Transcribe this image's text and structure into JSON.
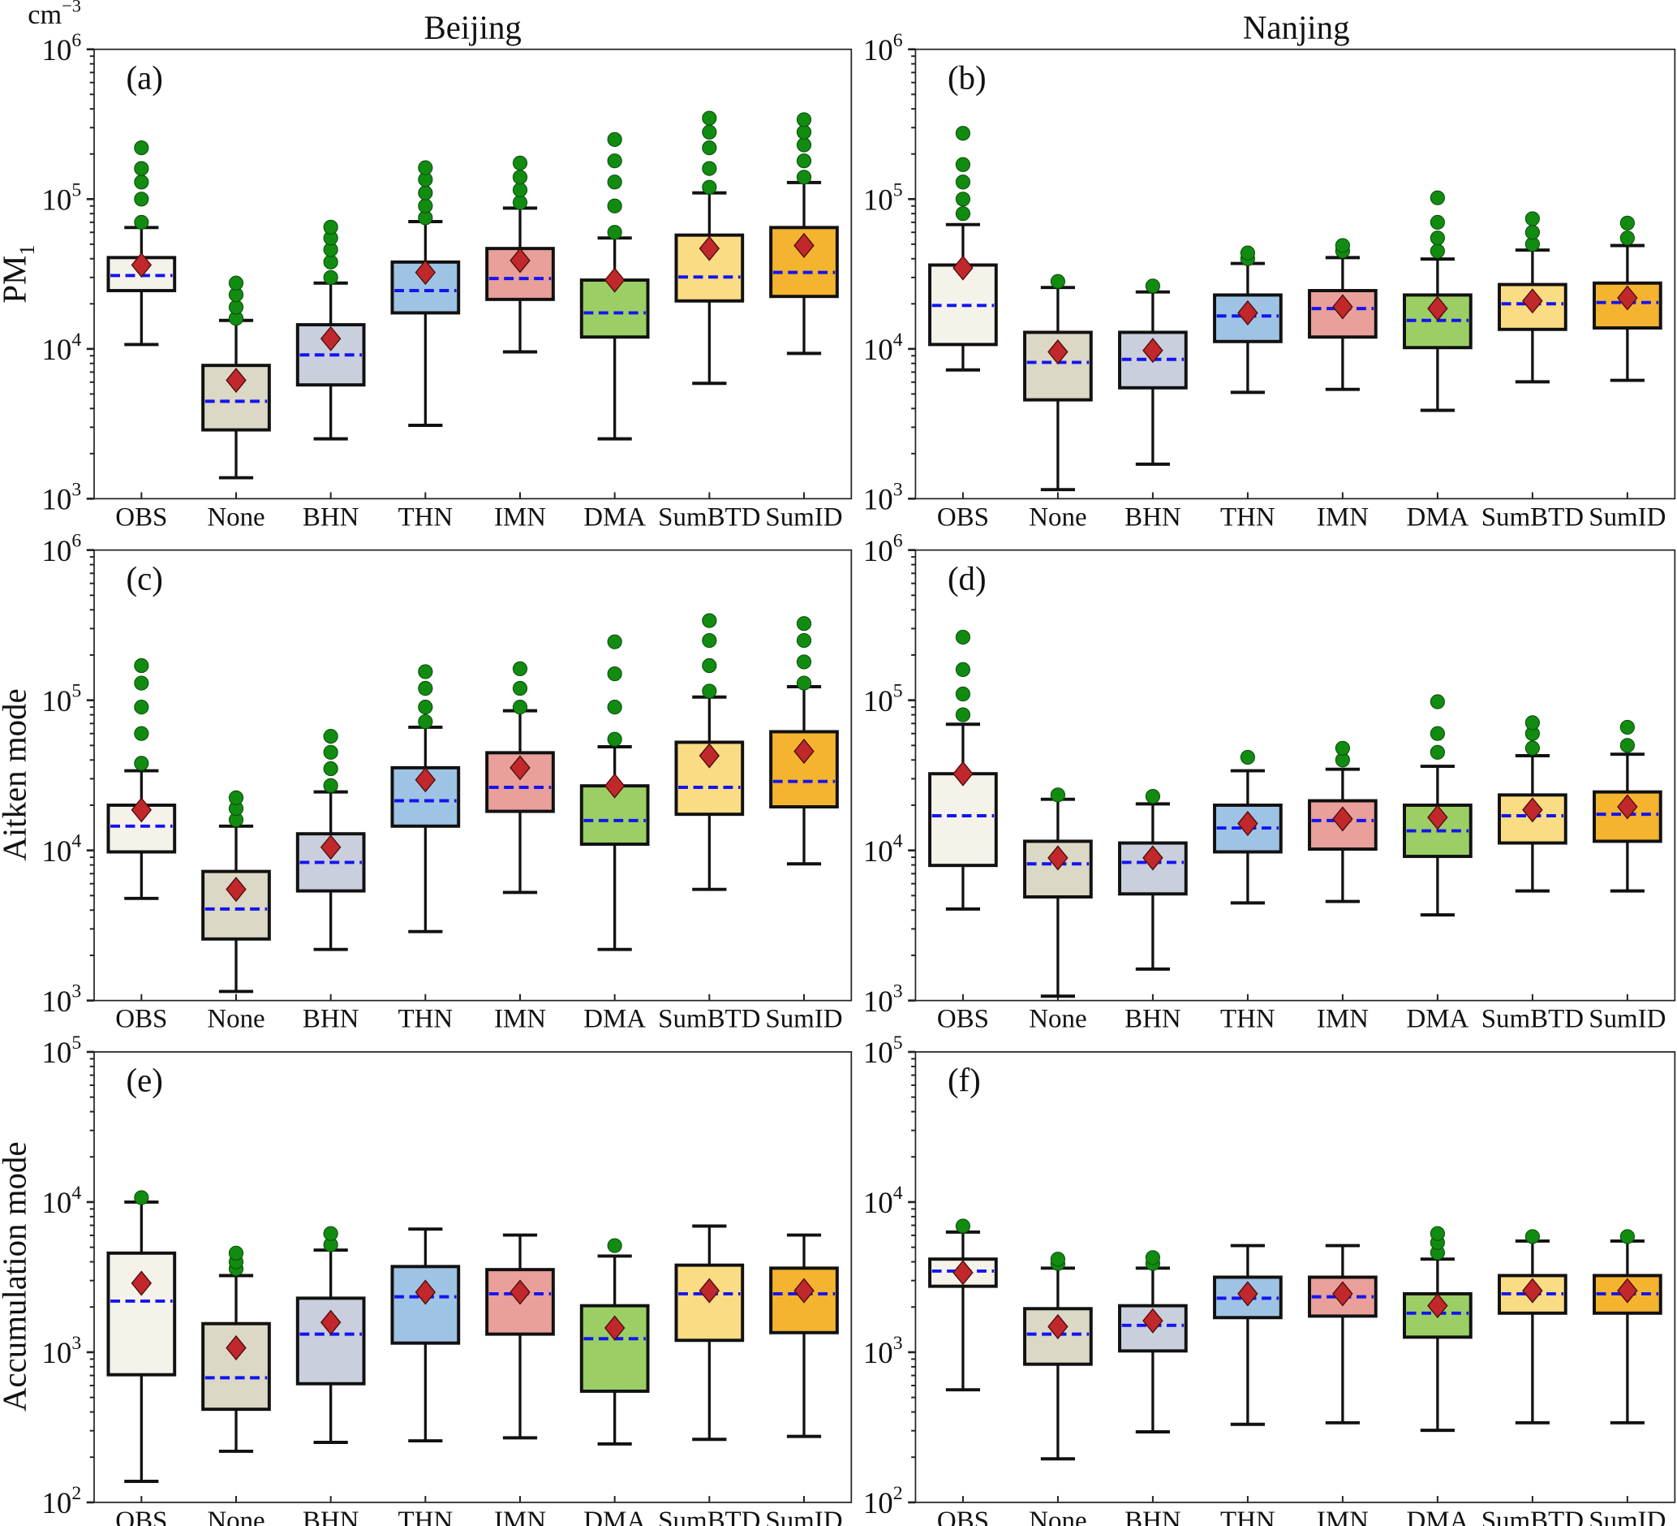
{
  "figure": {
    "unit_label": "cm",
    "unit_exponent": "−3",
    "column_titles": [
      "Beijing",
      "Nanjing"
    ],
    "row_labels": [
      {
        "main": "PM",
        "sub": "1"
      },
      {
        "main": "Aitken mode",
        "sub": ""
      },
      {
        "main": "Accumulation mode",
        "sub": ""
      }
    ]
  },
  "colors": {
    "box_fills": [
      "#f5f2ea",
      "#dcd8c6",
      "#c9cfdc",
      "#9fc3e4",
      "#e9a09a",
      "#9bcf65",
      "#f9dc84",
      "#f4b42f"
    ],
    "outlier": "#118c11",
    "mean_marker": "#c0282b",
    "median_line": "#1414f0"
  },
  "chart_data": [
    {
      "type": "box",
      "panel_label": "(a)",
      "column": "Beijing",
      "row": "PM1",
      "yscale": "log",
      "ylim": [
        1000,
        1000000
      ],
      "ytick_exponents": [
        3,
        4,
        5,
        6
      ],
      "categories": [
        "OBS",
        "None",
        "BHN",
        "THN",
        "IMN",
        "DMA",
        "SumBTD",
        "SumID"
      ],
      "boxes": [
        {
          "whisker_low": 10700,
          "q1": 24500,
          "median": 30900,
          "q3": 40700,
          "whisker_high": 64600,
          "mean": 36300,
          "outliers": [
            70000,
            100000,
            130000,
            160000,
            220000
          ]
        },
        {
          "whisker_low": 1380,
          "q1": 2880,
          "median": 4470,
          "q3": 7760,
          "whisker_high": 15500,
          "mean": 6170,
          "outliers": [
            16000,
            19000,
            23000,
            27500
          ]
        },
        {
          "whisker_low": 2510,
          "q1": 5750,
          "median": 9120,
          "q3": 14500,
          "whisker_high": 27500,
          "mean": 11700,
          "outliers": [
            30000,
            38000,
            46000,
            55000,
            65000
          ]
        },
        {
          "whisker_low": 3090,
          "q1": 17400,
          "median": 24500,
          "q3": 38000,
          "whisker_high": 70800,
          "mean": 32400,
          "outliers": [
            75000,
            90000,
            110000,
            135000,
            162000
          ]
        },
        {
          "whisker_low": 9550,
          "q1": 21400,
          "median": 29500,
          "q3": 46800,
          "whisker_high": 87100,
          "mean": 38900,
          "outliers": [
            95000,
            115000,
            140000,
            174000
          ]
        },
        {
          "whisker_low": 2510,
          "q1": 12000,
          "median": 17400,
          "q3": 28800,
          "whisker_high": 55000,
          "mean": 28800,
          "outliers": [
            60000,
            90000,
            130000,
            180000,
            250000
          ]
        },
        {
          "whisker_low": 5890,
          "q1": 20900,
          "median": 30200,
          "q3": 57500,
          "whisker_high": 110000,
          "mean": 46800,
          "outliers": [
            120000,
            160000,
            220000,
            280000,
            347000
          ]
        },
        {
          "whisker_low": 9330,
          "q1": 22400,
          "median": 32400,
          "q3": 64600,
          "whisker_high": 129000,
          "mean": 49000,
          "outliers": [
            140000,
            180000,
            230000,
            280000,
            339000
          ]
        }
      ]
    },
    {
      "type": "box",
      "panel_label": "(b)",
      "column": "Nanjing",
      "row": "PM1",
      "yscale": "log",
      "ylim": [
        1000,
        1000000
      ],
      "ytick_exponents": [
        3,
        4,
        5,
        6
      ],
      "categories": [
        "OBS",
        "None",
        "BHN",
        "THN",
        "IMN",
        "DMA",
        "SumBTD",
        "SumID"
      ],
      "boxes": [
        {
          "whisker_low": 7240,
          "q1": 10700,
          "median": 19500,
          "q3": 36300,
          "whisker_high": 67600,
          "mean": 34700,
          "outliers": [
            80000,
            100000,
            130000,
            170000,
            275000
          ]
        },
        {
          "whisker_low": 1150,
          "q1": 4570,
          "median": 8130,
          "q3": 12900,
          "whisker_high": 25700,
          "mean": 9550,
          "outliers": [
            28200
          ]
        },
        {
          "whisker_low": 1700,
          "q1": 5500,
          "median": 8510,
          "q3": 12900,
          "whisker_high": 24000,
          "mean": 9770,
          "outliers": [
            26300
          ]
        },
        {
          "whisker_low": 5130,
          "q1": 11200,
          "median": 16600,
          "q3": 22900,
          "whisker_high": 37200,
          "mean": 17400,
          "outliers": [
            40000,
            43700
          ]
        },
        {
          "whisker_low": 5370,
          "q1": 12000,
          "median": 18600,
          "q3": 24500,
          "whisker_high": 40700,
          "mean": 19100,
          "outliers": [
            45000,
            49000
          ]
        },
        {
          "whisker_low": 3890,
          "q1": 10200,
          "median": 15500,
          "q3": 22900,
          "whisker_high": 39800,
          "mean": 18600,
          "outliers": [
            45000,
            55000,
            70000,
            102000
          ]
        },
        {
          "whisker_low": 6030,
          "q1": 13500,
          "median": 20000,
          "q3": 26900,
          "whisker_high": 45700,
          "mean": 20900,
          "outliers": [
            50000,
            60000,
            74000
          ]
        },
        {
          "whisker_low": 6170,
          "q1": 13800,
          "median": 20400,
          "q3": 27500,
          "whisker_high": 49000,
          "mean": 21900,
          "outliers": [
            55000,
            69200
          ]
        }
      ]
    },
    {
      "type": "box",
      "panel_label": "(c)",
      "column": "Beijing",
      "row": "Aitken mode",
      "yscale": "log",
      "ylim": [
        1000,
        1000000
      ],
      "ytick_exponents": [
        3,
        4,
        5,
        6
      ],
      "categories": [
        "OBS",
        "None",
        "BHN",
        "THN",
        "IMN",
        "DMA",
        "SumBTD",
        "SumID"
      ],
      "boxes": [
        {
          "whisker_low": 4790,
          "q1": 9770,
          "median": 14500,
          "q3": 20000,
          "whisker_high": 33900,
          "mean": 18600,
          "outliers": [
            38000,
            60000,
            90000,
            130000,
            170000
          ]
        },
        {
          "whisker_low": 1150,
          "q1": 2570,
          "median": 4070,
          "q3": 7240,
          "whisker_high": 14500,
          "mean": 5500,
          "outliers": [
            16000,
            19000,
            22400
          ]
        },
        {
          "whisker_low": 2190,
          "q1": 5370,
          "median": 8320,
          "q3": 12900,
          "whisker_high": 24500,
          "mean": 10500,
          "outliers": [
            27000,
            35000,
            45000,
            57500
          ]
        },
        {
          "whisker_low": 2880,
          "q1": 14500,
          "median": 21400,
          "q3": 35500,
          "whisker_high": 66100,
          "mean": 29500,
          "outliers": [
            72000,
            90000,
            120000,
            155000
          ]
        },
        {
          "whisker_low": 5250,
          "q1": 18200,
          "median": 26300,
          "q3": 44700,
          "whisker_high": 85100,
          "mean": 35500,
          "outliers": [
            90000,
            120000,
            162000
          ]
        },
        {
          "whisker_low": 2190,
          "q1": 11000,
          "median": 15800,
          "q3": 26900,
          "whisker_high": 49000,
          "mean": 26900,
          "outliers": [
            55000,
            90000,
            150000,
            245000
          ]
        },
        {
          "whisker_low": 5500,
          "q1": 17400,
          "median": 26300,
          "q3": 52500,
          "whisker_high": 105000,
          "mean": 42700,
          "outliers": [
            115000,
            170000,
            250000,
            339000
          ]
        },
        {
          "whisker_low": 8130,
          "q1": 19500,
          "median": 28800,
          "q3": 61700,
          "whisker_high": 123000,
          "mean": 45700,
          "outliers": [
            130000,
            180000,
            250000,
            324000
          ]
        }
      ]
    },
    {
      "type": "box",
      "panel_label": "(d)",
      "column": "Nanjing",
      "row": "Aitken mode",
      "yscale": "log",
      "ylim": [
        1000,
        1000000
      ],
      "ytick_exponents": [
        3,
        4,
        5,
        6
      ],
      "categories": [
        "OBS",
        "None",
        "BHN",
        "THN",
        "IMN",
        "DMA",
        "SumBTD",
        "SumID"
      ],
      "boxes": [
        {
          "whisker_low": 4070,
          "q1": 7940,
          "median": 17000,
          "q3": 32400,
          "whisker_high": 69200,
          "mean": 32400,
          "outliers": [
            80000,
            110000,
            160000,
            263000
          ]
        },
        {
          "whisker_low": 1070,
          "q1": 4900,
          "median": 8130,
          "q3": 11500,
          "whisker_high": 21900,
          "mean": 8910,
          "outliers": [
            23400
          ]
        },
        {
          "whisker_low": 1620,
          "q1": 5130,
          "median": 8320,
          "q3": 11200,
          "whisker_high": 20400,
          "mean": 8910,
          "outliers": [
            22900
          ]
        },
        {
          "whisker_low": 4470,
          "q1": 9770,
          "median": 14100,
          "q3": 20000,
          "whisker_high": 33900,
          "mean": 15100,
          "outliers": [
            41700
          ]
        },
        {
          "whisker_low": 4570,
          "q1": 10200,
          "median": 15800,
          "q3": 21400,
          "whisker_high": 34700,
          "mean": 16200,
          "outliers": [
            40000,
            47900
          ]
        },
        {
          "whisker_low": 3720,
          "q1": 9120,
          "median": 13500,
          "q3": 20000,
          "whisker_high": 36300,
          "mean": 16600,
          "outliers": [
            45000,
            60000,
            97700
          ]
        },
        {
          "whisker_low": 5370,
          "q1": 11200,
          "median": 17000,
          "q3": 23400,
          "whisker_high": 42700,
          "mean": 18600,
          "outliers": [
            48000,
            60000,
            70800
          ]
        },
        {
          "whisker_low": 5370,
          "q1": 11500,
          "median": 17400,
          "q3": 24500,
          "whisker_high": 43700,
          "mean": 19500,
          "outliers": [
            50000,
            66100
          ]
        }
      ]
    },
    {
      "type": "box",
      "panel_label": "(e)",
      "column": "Beijing",
      "row": "Accumulation mode",
      "yscale": "log",
      "ylim": [
        100,
        100000
      ],
      "ytick_exponents": [
        2,
        3,
        4,
        5
      ],
      "categories": [
        "OBS",
        "None",
        "BHN",
        "THN",
        "IMN",
        "DMA",
        "SumBTD",
        "SumID"
      ],
      "boxes": [
        {
          "whisker_low": 138,
          "q1": 708,
          "median": 2190,
          "q3": 4570,
          "whisker_high": 10000,
          "mean": 2880,
          "outliers": [
            10700
          ]
        },
        {
          "whisker_low": 219,
          "q1": 417,
          "median": 676,
          "q3": 1550,
          "whisker_high": 3240,
          "mean": 1070,
          "outliers": [
            3600,
            4000,
            4570
          ]
        },
        {
          "whisker_low": 251,
          "q1": 617,
          "median": 1320,
          "q3": 2290,
          "whisker_high": 4790,
          "mean": 1580,
          "outliers": [
            5200,
            6170
          ]
        },
        {
          "whisker_low": 257,
          "q1": 1150,
          "median": 2340,
          "q3": 3720,
          "whisker_high": 6610,
          "mean": 2510,
          "outliers": []
        },
        {
          "whisker_low": 269,
          "q1": 1320,
          "median": 2450,
          "q3": 3550,
          "whisker_high": 6030,
          "mean": 2510,
          "outliers": []
        },
        {
          "whisker_low": 245,
          "q1": 550,
          "median": 1230,
          "q3": 2040,
          "whisker_high": 4370,
          "mean": 1450,
          "outliers": [
            5130
          ]
        },
        {
          "whisker_low": 263,
          "q1": 1200,
          "median": 2450,
          "q3": 3800,
          "whisker_high": 6920,
          "mean": 2570,
          "outliers": []
        },
        {
          "whisker_low": 275,
          "q1": 1350,
          "median": 2450,
          "q3": 3630,
          "whisker_high": 6030,
          "mean": 2570,
          "outliers": []
        }
      ]
    },
    {
      "type": "box",
      "panel_label": "(f)",
      "column": "Nanjing",
      "row": "Accumulation mode",
      "yscale": "log",
      "ylim": [
        100,
        100000
      ],
      "ytick_exponents": [
        2,
        3,
        4,
        5
      ],
      "categories": [
        "OBS",
        "None",
        "BHN",
        "THN",
        "IMN",
        "DMA",
        "SumBTD",
        "SumID"
      ],
      "boxes": [
        {
          "whisker_low": 562,
          "q1": 2750,
          "median": 3470,
          "q3": 4170,
          "whisker_high": 6310,
          "mean": 3390,
          "outliers": [
            6920
          ]
        },
        {
          "whisker_low": 195,
          "q1": 832,
          "median": 1320,
          "q3": 1950,
          "whisker_high": 3630,
          "mean": 1480,
          "outliers": [
            3900,
            4170
          ]
        },
        {
          "whisker_low": 295,
          "q1": 1020,
          "median": 1510,
          "q3": 2040,
          "whisker_high": 3630,
          "mean": 1620,
          "outliers": [
            3900,
            4270
          ]
        },
        {
          "whisker_low": 331,
          "q1": 1700,
          "median": 2290,
          "q3": 3160,
          "whisker_high": 5130,
          "mean": 2450,
          "outliers": []
        },
        {
          "whisker_low": 339,
          "q1": 1740,
          "median": 2340,
          "q3": 3160,
          "whisker_high": 5130,
          "mean": 2450,
          "outliers": []
        },
        {
          "whisker_low": 302,
          "q1": 1260,
          "median": 1820,
          "q3": 2450,
          "whisker_high": 4170,
          "mean": 2040,
          "outliers": [
            4600,
            5370,
            6170
          ]
        },
        {
          "whisker_low": 339,
          "q1": 1820,
          "median": 2450,
          "q3": 3240,
          "whisker_high": 5500,
          "mean": 2570,
          "outliers": [
            5890
          ]
        },
        {
          "whisker_low": 339,
          "q1": 1820,
          "median": 2450,
          "q3": 3240,
          "whisker_high": 5500,
          "mean": 2570,
          "outliers": [
            5890
          ]
        }
      ]
    }
  ]
}
